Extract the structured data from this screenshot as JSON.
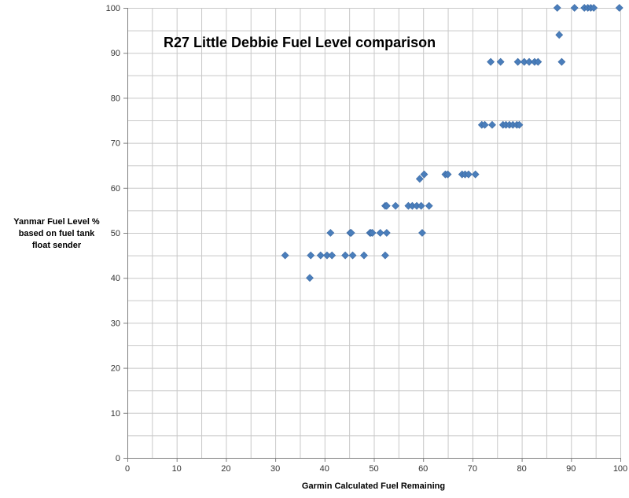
{
  "chart_data": {
    "type": "scatter",
    "title": "R27 Little Debbie Fuel Level comparison",
    "xlabel": "Garmin Calculated Fuel Remaining",
    "ylabel_lines": [
      "Yanmar Fuel Level %",
      "based on fuel tank",
      "float sender"
    ],
    "xlim": [
      0,
      100
    ],
    "ylim": [
      0,
      100
    ],
    "x_ticks": [
      0,
      10,
      20,
      30,
      40,
      50,
      60,
      70,
      80,
      90,
      100
    ],
    "y_ticks": [
      0,
      10,
      20,
      30,
      40,
      50,
      60,
      70,
      80,
      90,
      100
    ],
    "x_minor_step": 5,
    "y_minor_step": 5,
    "grid": true,
    "legend": false,
    "marker": "diamond",
    "marker_color": "#4a7ebb",
    "grid_color": "#c8c8c8",
    "series": [
      {
        "points": [
          [
            32,
            45
          ],
          [
            37,
            40
          ],
          [
            37.2,
            45
          ],
          [
            39.2,
            45
          ],
          [
            40.5,
            45
          ],
          [
            41.2,
            50
          ],
          [
            41.5,
            45
          ],
          [
            44.2,
            45
          ],
          [
            45.2,
            50
          ],
          [
            45.4,
            50
          ],
          [
            45.7,
            45
          ],
          [
            48,
            45
          ],
          [
            49.2,
            50
          ],
          [
            49.4,
            50
          ],
          [
            49.7,
            50
          ],
          [
            51.3,
            50
          ],
          [
            52.3,
            45
          ],
          [
            52.6,
            50
          ],
          [
            52.3,
            56
          ],
          [
            52.6,
            56
          ],
          [
            54.4,
            56
          ],
          [
            57,
            56
          ],
          [
            57.8,
            56
          ],
          [
            58.7,
            56
          ],
          [
            59.3,
            62
          ],
          [
            59.6,
            56
          ],
          [
            59.8,
            50
          ],
          [
            60.2,
            63
          ],
          [
            61.2,
            56
          ],
          [
            64.5,
            63
          ],
          [
            65,
            63
          ],
          [
            67.9,
            63
          ],
          [
            68.5,
            63
          ],
          [
            69.2,
            63
          ],
          [
            70.6,
            63
          ],
          [
            71.9,
            74
          ],
          [
            72.5,
            74
          ],
          [
            73.7,
            88
          ],
          [
            74,
            74
          ],
          [
            75.7,
            88
          ],
          [
            76.2,
            74
          ],
          [
            76.8,
            74
          ],
          [
            77.5,
            74
          ],
          [
            78.2,
            74
          ],
          [
            79,
            74
          ],
          [
            79.2,
            88
          ],
          [
            79.5,
            74
          ],
          [
            80.5,
            88
          ],
          [
            81.5,
            88
          ],
          [
            82.6,
            88
          ],
          [
            83.3,
            88
          ],
          [
            87.2,
            100
          ],
          [
            87.6,
            94
          ],
          [
            88.1,
            88
          ],
          [
            90.7,
            100
          ],
          [
            92.7,
            100
          ],
          [
            93.4,
            100
          ],
          [
            94,
            100
          ],
          [
            94.6,
            100
          ],
          [
            99.8,
            100
          ]
        ]
      }
    ]
  }
}
